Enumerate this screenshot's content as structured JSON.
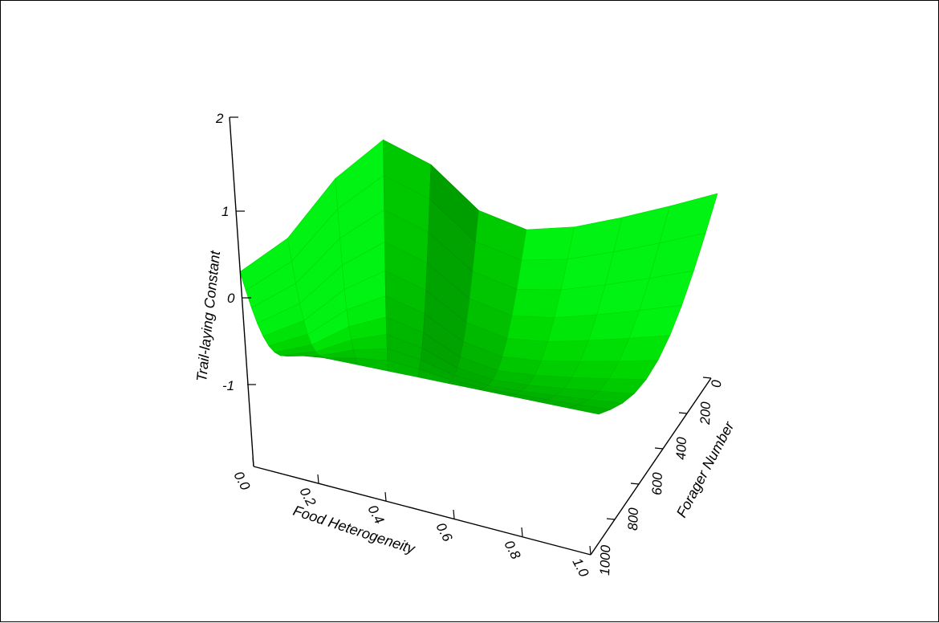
{
  "chart_data": {
    "type": "surface3d",
    "title": "",
    "zlabel": "Trail-laying Constant",
    "xlabel": "Food Heterogeneity",
    "ylabel": "Forager Number",
    "zlim": [
      -2,
      2
    ],
    "z_ticks": [
      "2",
      "1",
      "0",
      "-1"
    ],
    "x_ticks": [
      "0.0",
      "0.2",
      "0.4",
      "0.6",
      "0.8",
      "1.0"
    ],
    "y_ticks": [
      "0",
      "200",
      "400",
      "600",
      "800",
      "1000"
    ],
    "colors": {
      "surface_base": "#00b400",
      "surface_light": "#00ff33",
      "surface_dark": "#005a00"
    }
  }
}
